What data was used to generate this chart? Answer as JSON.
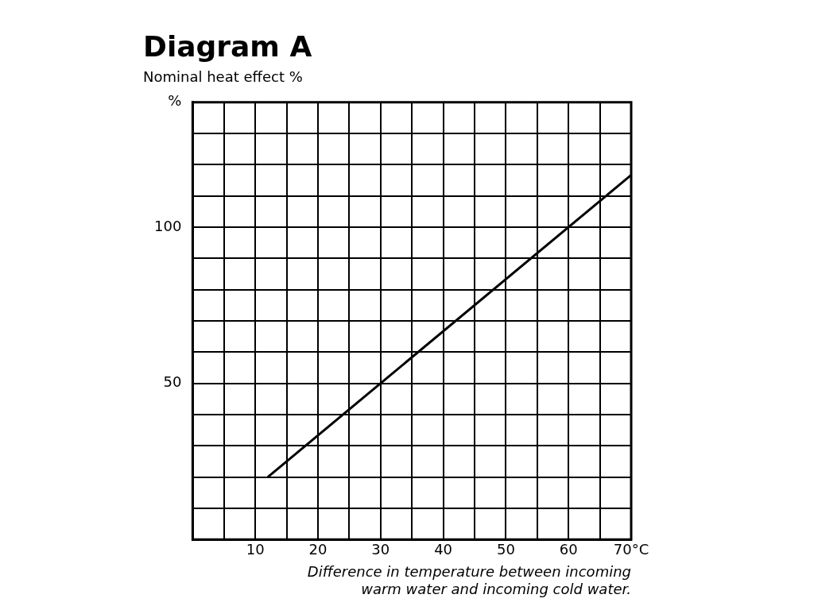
{
  "chart_data": {
    "type": "line",
    "title": "Diagram A",
    "subtitle": "Nominal heat effect %",
    "xlabel": "Difference in temperature between incoming warm water and incoming cold water.",
    "x": [
      12,
      70
    ],
    "series": [
      {
        "color": "#000000",
        "values": [
          20,
          116.7
        ]
      }
    ],
    "xlim": [
      0,
      70
    ],
    "ylim": [
      0,
      140
    ],
    "xticks": [
      {
        "value": 0,
        "label": null
      },
      {
        "value": 5,
        "label": null
      },
      10,
      {
        "value": 15,
        "label": null
      },
      20,
      {
        "value": 25,
        "label": null
      },
      30,
      {
        "value": 35,
        "label": null
      },
      40,
      {
        "value": 45,
        "label": null
      },
      50,
      {
        "value": 55,
        "label": null
      },
      60,
      {
        "value": 65,
        "label": null
      },
      {
        "value": 70,
        "label": "70°C"
      }
    ],
    "yticks": [
      {
        "value": 0,
        "label": null
      },
      {
        "value": 10,
        "label": null
      },
      {
        "value": 20,
        "label": null
      },
      {
        "value": 30,
        "label": null
      },
      {
        "value": 40,
        "label": null
      },
      50,
      {
        "value": 60,
        "label": null
      },
      {
        "value": 70,
        "label": null
      },
      {
        "value": 80,
        "label": null
      },
      {
        "value": 90,
        "label": null
      },
      100,
      {
        "value": 110,
        "label": null
      },
      {
        "value": 120,
        "label": null
      },
      {
        "value": 130,
        "label": null
      },
      {
        "value": 140,
        "label": "%"
      }
    ],
    "grid": true,
    "legend": false,
    "marker": "none",
    "line_style": "solid"
  }
}
